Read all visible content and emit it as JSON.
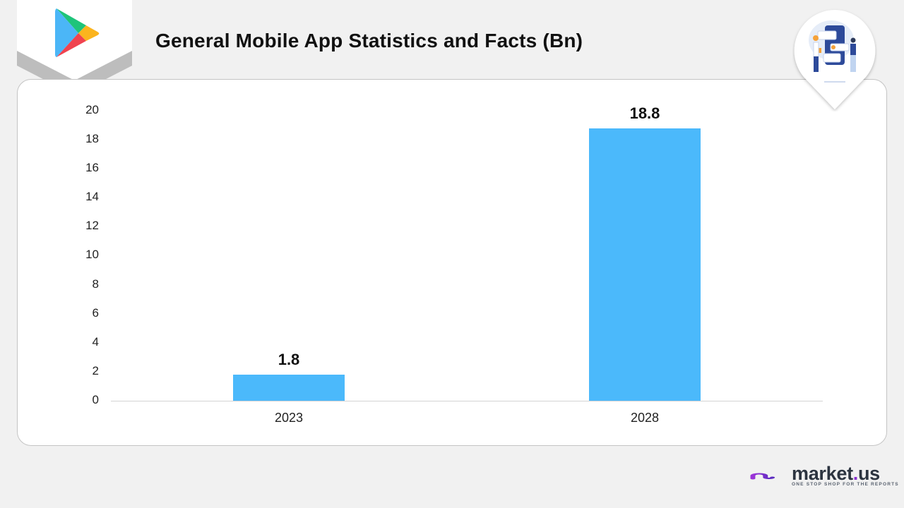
{
  "header": {
    "title": "General Mobile App Statistics and Facts (Bn)",
    "left_icon": "google-play-icon",
    "right_illustration": "app-development-illustration"
  },
  "chart_data": {
    "type": "bar",
    "title": "General Mobile App Statistics and Facts (Bn)",
    "categories": [
      "2023",
      "2028"
    ],
    "values": [
      1.8,
      18.8
    ],
    "value_labels": [
      "1.8",
      "18.8"
    ],
    "xlabel": "",
    "ylabel": "",
    "ylim": [
      0,
      20
    ],
    "yticks": [
      "0",
      "2",
      "4",
      "6",
      "8",
      "10",
      "12",
      "14",
      "16",
      "18",
      "20"
    ],
    "grid": false,
    "legend": null,
    "bar_color": "#4bb9fb"
  },
  "colors": {
    "background": "#f1f1f1",
    "panel": "#ffffff",
    "bar": "#4bb9fb",
    "text": "#111111",
    "brand_purple": "#8a2fd0"
  },
  "footer": {
    "brand_name": "market",
    "brand_dot": ".",
    "brand_suffix": "us",
    "tagline": "ONE STOP SHOP FOR THE REPORTS"
  }
}
